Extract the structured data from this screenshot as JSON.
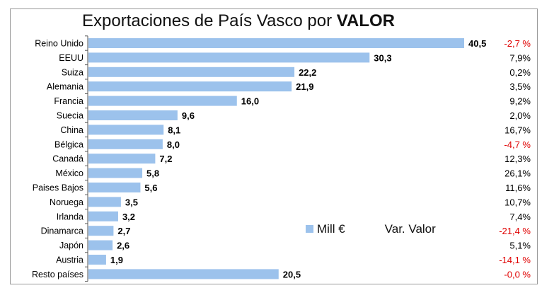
{
  "title_prefix": "Exportaciones de País Vasco por ",
  "title_bold": "VALOR",
  "colors": {
    "bar": "#9cc2ec",
    "positive": "#000000",
    "negative": "#e00000",
    "axis": "#555555"
  },
  "legend": {
    "series": "Mill €",
    "variation": "Var. Valor"
  },
  "chart_data": {
    "type": "bar",
    "orientation": "horizontal",
    "categories": [
      "Reino Unido",
      "EEUU",
      "Suiza",
      "Alemania",
      "Francia",
      "Suecia",
      "China",
      "Bélgica",
      "Canadá",
      "México",
      "Paises Bajos",
      "Noruega",
      "Irlanda",
      "Dinamarca",
      "Japón",
      "Austria",
      "Resto países"
    ],
    "values": [
      40.5,
      30.3,
      22.2,
      21.9,
      16.0,
      9.6,
      8.1,
      8.0,
      7.2,
      5.8,
      5.6,
      3.5,
      3.2,
      2.7,
      2.6,
      1.9,
      20.5
    ],
    "value_labels": [
      "40,5",
      "30,3",
      "22,2",
      "21,9",
      "16,0",
      "9,6",
      "8,1",
      "8,0",
      "7,2",
      "5,8",
      "5,6",
      "3,5",
      "3,2",
      "2,7",
      "2,6",
      "1,9",
      "20,5"
    ],
    "variation_labels": [
      "-2,7 %",
      "7,9%",
      "0,2%",
      "3,5%",
      "9,2%",
      "2,0%",
      "16,7%",
      "-4,7 %",
      "12,3%",
      "26,1%",
      "11,6%",
      "10,7%",
      "7,4%",
      "-21,4 %",
      "5,1%",
      "-14,1 %",
      "-0,0 %"
    ],
    "variation_values": [
      -2.7,
      7.9,
      0.2,
      3.5,
      9.2,
      2.0,
      16.7,
      -4.7,
      12.3,
      26.1,
      11.6,
      10.7,
      7.4,
      -21.4,
      5.1,
      -14.1,
      -0.0
    ],
    "variation_negative": [
      true,
      false,
      false,
      false,
      false,
      false,
      false,
      true,
      false,
      false,
      false,
      false,
      false,
      true,
      false,
      true,
      true
    ],
    "xlim": [
      0,
      44
    ],
    "grid": false,
    "legend_position": "bottom-right"
  }
}
